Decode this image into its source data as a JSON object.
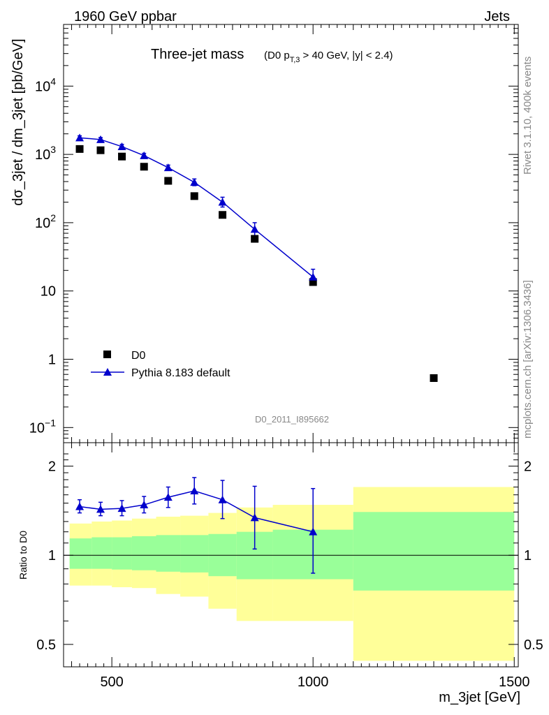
{
  "header": {
    "left": "1960 GeV ppbar",
    "right": "Jets"
  },
  "title": {
    "main": "Three-jet mass",
    "sub_prefix": "(D0 p",
    "sub_sub": "T,3",
    "sub_suffix": " > 40 GeV, |y| < 2.4)"
  },
  "analysis_id": "D0_2011_I895662",
  "side_text": {
    "top": "Rivet 3.1.10,  400k events",
    "bottom": "mcplots.cern.ch [arXiv:1306.3436]"
  },
  "colors": {
    "data": "#000000",
    "mc": "#0000cc",
    "band_inner": "#99ff99",
    "band_outer": "#ffff99"
  },
  "chart_data": [
    {
      "type": "scatter",
      "panel": "main",
      "ylabel": "dσ_3jet / dm_3jet [pb/GeV]",
      "yscale": "log",
      "ylim": [
        0.06,
        80000
      ],
      "xlim": [
        380,
        1510
      ],
      "yticks": [
        {
          "value": 0.1,
          "base": "10",
          "exp": "−1"
        },
        {
          "value": 1,
          "label": "1"
        },
        {
          "value": 10,
          "label": "10"
        },
        {
          "value": 100,
          "base": "10",
          "exp": "2"
        },
        {
          "value": 1000,
          "base": "10",
          "exp": "3"
        },
        {
          "value": 10000,
          "base": "10",
          "exp": "4"
        }
      ],
      "legend": {
        "placement": "lower-left",
        "entries": [
          "D0",
          "Pythia 8.183 default"
        ]
      },
      "series": [
        {
          "name": "D0",
          "marker": "square",
          "x": [
            420,
            472,
            525,
            580,
            640,
            705,
            775,
            855,
            1000,
            1300
          ],
          "y": [
            1200,
            1150,
            930,
            660,
            410,
            245,
            130,
            58,
            13.5,
            0.53
          ]
        },
        {
          "name": "Pythia 8.183 default",
          "marker": "triangle",
          "x": [
            420,
            472,
            525,
            580,
            640,
            705,
            775,
            855,
            1000
          ],
          "y": [
            1750,
            1650,
            1300,
            960,
            640,
            390,
            200,
            80,
            16
          ],
          "err": [
            0.07,
            0.07,
            0.08,
            0.08,
            0.09,
            0.12,
            0.18,
            0.25,
            0.3
          ]
        }
      ]
    },
    {
      "type": "line",
      "panel": "ratio",
      "ylabel": "Ratio to D0",
      "xlabel": "m_3jet [GeV]",
      "yscale": "log",
      "ylim": [
        0.42,
        2.4
      ],
      "xlim": [
        380,
        1510
      ],
      "xticks": [
        500,
        1000,
        1500
      ],
      "yticks": [
        {
          "value": 0.5,
          "label": "0.5"
        },
        {
          "value": 1,
          "label": "1"
        },
        {
          "value": 2,
          "label": "2"
        }
      ],
      "bands": [
        {
          "x0": 395,
          "x1": 450,
          "inner": [
            0.9,
            1.14
          ],
          "outer": [
            0.79,
            1.28
          ]
        },
        {
          "x0": 450,
          "x1": 500,
          "inner": [
            0.9,
            1.15
          ],
          "outer": [
            0.79,
            1.3
          ]
        },
        {
          "x0": 500,
          "x1": 550,
          "inner": [
            0.895,
            1.15
          ],
          "outer": [
            0.78,
            1.31
          ]
        },
        {
          "x0": 550,
          "x1": 610,
          "inner": [
            0.89,
            1.16
          ],
          "outer": [
            0.775,
            1.33
          ]
        },
        {
          "x0": 610,
          "x1": 670,
          "inner": [
            0.88,
            1.17
          ],
          "outer": [
            0.74,
            1.35
          ]
        },
        {
          "x0": 670,
          "x1": 740,
          "inner": [
            0.875,
            1.17
          ],
          "outer": [
            0.725,
            1.36
          ]
        },
        {
          "x0": 740,
          "x1": 810,
          "inner": [
            0.85,
            1.18
          ],
          "outer": [
            0.66,
            1.39
          ]
        },
        {
          "x0": 810,
          "x1": 900,
          "inner": [
            0.83,
            1.2
          ],
          "outer": [
            0.6,
            1.45
          ]
        },
        {
          "x0": 900,
          "x1": 1100,
          "inner": [
            0.83,
            1.22
          ],
          "outer": [
            0.6,
            1.48
          ]
        },
        {
          "x0": 1100,
          "x1": 1500,
          "inner": [
            0.76,
            1.4
          ],
          "outer": [
            0.44,
            1.7
          ]
        }
      ],
      "series": [
        {
          "name": "Pythia 8.183 default",
          "marker": "triangle",
          "x": [
            420,
            472,
            525,
            580,
            640,
            705,
            775,
            855,
            1000
          ],
          "y": [
            1.46,
            1.43,
            1.44,
            1.48,
            1.57,
            1.65,
            1.54,
            1.34,
            1.2
          ],
          "ylow": [
            1.39,
            1.36,
            1.36,
            1.39,
            1.45,
            1.49,
            1.33,
            1.05,
            0.87
          ],
          "yhigh": [
            1.54,
            1.51,
            1.53,
            1.58,
            1.7,
            1.83,
            1.79,
            1.71,
            1.68
          ]
        }
      ]
    }
  ]
}
